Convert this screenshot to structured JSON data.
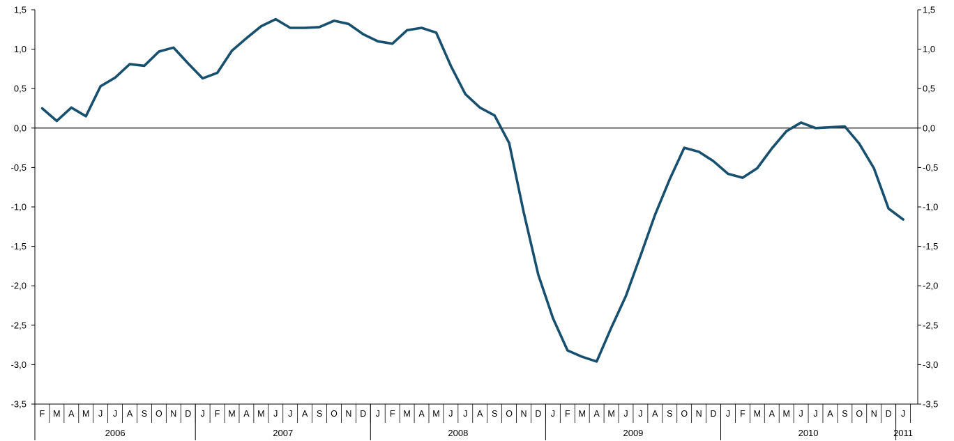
{
  "chart_data": {
    "type": "line",
    "title": "",
    "xlabel": "",
    "ylabel": "",
    "ylim": [
      -3.5,
      1.5
    ],
    "grid": false,
    "legend": "none",
    "y_ticks": [
      "1,5",
      "1,0",
      "0,5",
      "0,0",
      "-0,5",
      "-1,0",
      "-1,5",
      "-2,0",
      "-2,5",
      "-3,0",
      "-3,5"
    ],
    "y_tick_values": [
      1.5,
      1.0,
      0.5,
      0.0,
      -0.5,
      -1.0,
      -1.5,
      -2.0,
      -2.5,
      -3.0,
      -3.5
    ],
    "month_labels": [
      "F",
      "M",
      "A",
      "M",
      "J",
      "J",
      "A",
      "S",
      "O",
      "N",
      "D",
      "J",
      "F",
      "M",
      "A",
      "M",
      "J",
      "J",
      "A",
      "S",
      "O",
      "N",
      "D",
      "J",
      "F",
      "M",
      "A",
      "M",
      "J",
      "J",
      "A",
      "S",
      "O",
      "N",
      "D",
      "J",
      "F",
      "M",
      "A",
      "M",
      "J",
      "J",
      "A",
      "S",
      "O",
      "N",
      "D",
      "J",
      "F",
      "M",
      "A",
      "M",
      "J",
      "J",
      "A",
      "S",
      "O",
      "N",
      "D",
      "J"
    ],
    "years": [
      {
        "label": "2006",
        "start": 0,
        "end": 11
      },
      {
        "label": "2007",
        "start": 11,
        "end": 23
      },
      {
        "label": "2008",
        "start": 23,
        "end": 35
      },
      {
        "label": "2009",
        "start": 35,
        "end": 47
      },
      {
        "label": "2010",
        "start": 47,
        "end": 59
      },
      {
        "label": "2011",
        "start": 59,
        "end": 60
      }
    ],
    "series": [
      {
        "color": "#174f6e",
        "values": [
          0.25,
          0.09,
          0.26,
          0.15,
          0.53,
          0.64,
          0.81,
          0.79,
          0.97,
          1.02,
          0.82,
          0.63,
          0.7,
          0.98,
          1.14,
          1.29,
          1.38,
          1.27,
          1.27,
          1.28,
          1.36,
          1.32,
          1.19,
          1.1,
          1.07,
          1.24,
          1.27,
          1.21,
          0.79,
          0.43,
          0.26,
          0.16,
          -0.19,
          -1.07,
          -1.86,
          -2.41,
          -2.82,
          -2.9,
          -2.96,
          -2.53,
          -2.13,
          -1.62,
          -1.1,
          -0.65,
          -0.25,
          -0.3,
          -0.42,
          -0.58,
          -0.63,
          -0.51,
          -0.26,
          -0.04,
          0.07,
          0.0,
          0.01,
          0.02,
          -0.2,
          -0.51,
          -1.02,
          -1.16
        ]
      }
    ]
  }
}
